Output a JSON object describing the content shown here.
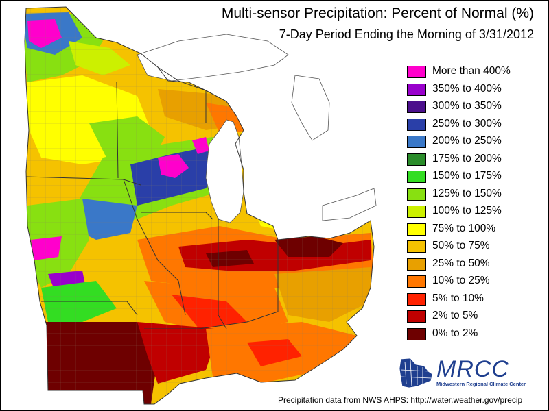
{
  "title": "Multi-sensor Precipitation: Percent of Normal (%)",
  "subtitle": "7-Day Period Ending the Morning of 3/31/2012",
  "legend": [
    {
      "label": "More than 400%",
      "color": "#ff00cc"
    },
    {
      "label": "350% to 400%",
      "color": "#9900cc"
    },
    {
      "label": "300% to 350%",
      "color": "#4b0f8c"
    },
    {
      "label": "250% to 300%",
      "color": "#2a3fa8"
    },
    {
      "label": "200% to 250%",
      "color": "#3a78c8"
    },
    {
      "label": "175% to 200%",
      "color": "#2a8c2a"
    },
    {
      "label": "150% to 175%",
      "color": "#33dd22"
    },
    {
      "label": "125% to 150%",
      "color": "#88e011"
    },
    {
      "label": "100% to 125%",
      "color": "#ccf000"
    },
    {
      "label": "75% to 100%",
      "color": "#ffff00"
    },
    {
      "label": "50% to 75%",
      "color": "#f5c200"
    },
    {
      "label": "25% to 50%",
      "color": "#e8a000"
    },
    {
      "label": "10% to 25%",
      "color": "#ff7700"
    },
    {
      "label": "5% to 10%",
      "color": "#ff2200"
    },
    {
      "label": "2% to 5%",
      "color": "#c00000"
    },
    {
      "label": "0% to 2%",
      "color": "#6e0000"
    }
  ],
  "logo": {
    "name": "MRCC",
    "full_name": "Midwestern Regional Climate Center"
  },
  "footer": {
    "source": "Precipitation data from NWS AHPS:",
    "url": "http://water.weather.gov/precip"
  }
}
